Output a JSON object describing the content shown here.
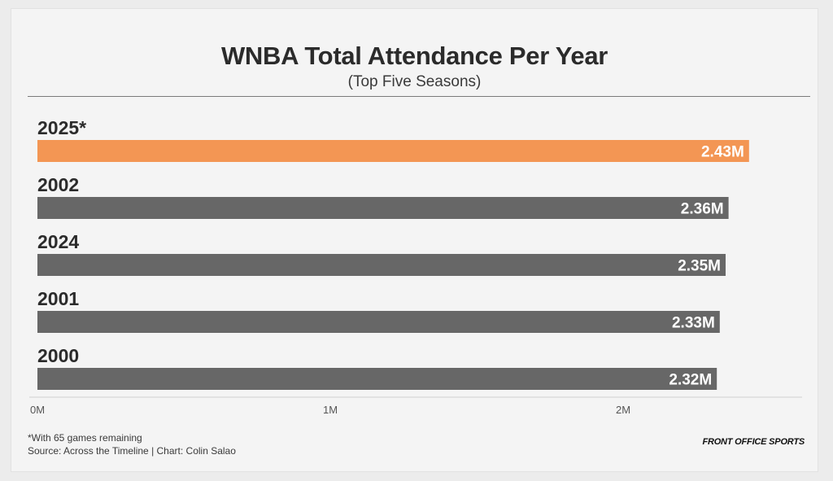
{
  "header": {
    "title": "WNBA Total Attendance Per Year",
    "subtitle": "(Top Five Seasons)"
  },
  "footer": {
    "note": "*With 65 games remaining",
    "source": "Source: Across the Timeline | Chart: Colin Salao",
    "brand": "FRONT OFFICE SPORTS"
  },
  "colors": {
    "highlight": "#f39654",
    "bar": "#676767",
    "label": "#2b2b2b",
    "axis": "#cfcfcf"
  },
  "chart_data": {
    "type": "bar",
    "orientation": "horizontal",
    "categories": [
      "2025*",
      "2002",
      "2024",
      "2001",
      "2000"
    ],
    "values": [
      2.43,
      2.36,
      2.35,
      2.33,
      2.32
    ],
    "value_labels": [
      "2.43M",
      "2.36M",
      "2.35M",
      "2.33M",
      "2.32M"
    ],
    "highlight_index": 0,
    "x_ticks": [
      0,
      1,
      2
    ],
    "x_tick_labels": [
      "0M",
      "1M",
      "2M"
    ],
    "xlim": [
      0,
      2.6
    ],
    "grid": false,
    "legend": "none"
  }
}
